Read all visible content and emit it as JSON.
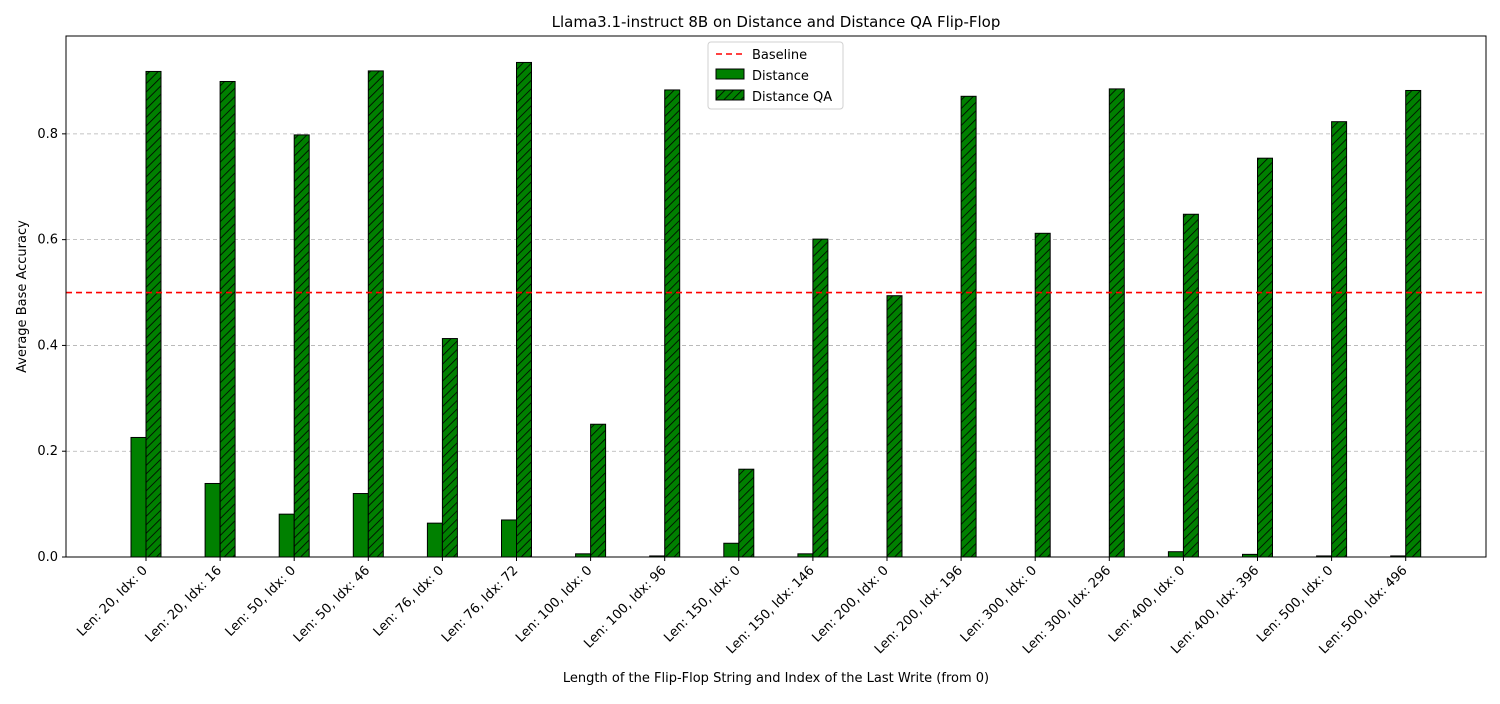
{
  "chart_data": {
    "type": "bar",
    "title": "Llama3.1-instruct 8B on Distance and Distance QA Flip-Flop",
    "xlabel": "Length of the Flip-Flop String and Index of the Last Write (from 0)",
    "ylabel": "Average Base Accuracy",
    "ylim": [
      0,
      0.985
    ],
    "yticks": [
      0.0,
      0.2,
      0.4,
      0.6,
      0.8
    ],
    "ytick_labels": [
      "0.0",
      "0.2",
      "0.4",
      "0.6",
      "0.8"
    ],
    "grid": "y-dashed",
    "legend_position": "top-center",
    "categories": [
      "Len: 20, Idx: 0",
      "Len: 20, Idx: 16",
      "Len: 50, Idx: 0",
      "Len: 50, Idx: 46",
      "Len: 76, Idx: 0",
      "Len: 76, Idx: 72",
      "Len: 100, Idx: 0",
      "Len: 100, Idx: 96",
      "Len: 150, Idx: 0",
      "Len: 150, Idx: 146",
      "Len: 200, Idx: 0",
      "Len: 200, Idx: 196",
      "Len: 300, Idx: 0",
      "Len: 300, Idx: 296",
      "Len: 400, Idx: 0",
      "Len: 400, Idx: 396",
      "Len: 500, Idx: 0",
      "Len: 500, Idx: 496"
    ],
    "series": [
      {
        "name": "Distance",
        "color": "#008000",
        "hatch": false,
        "values": [
          0.226,
          0.139,
          0.081,
          0.12,
          0.064,
          0.07,
          0.006,
          0.002,
          0.026,
          0.006,
          0.0,
          0.0,
          0.0,
          0.0,
          0.01,
          0.005,
          0.002,
          0.002
        ]
      },
      {
        "name": "Distance QA",
        "color": "#008000",
        "hatch": true,
        "values": [
          0.918,
          0.899,
          0.798,
          0.919,
          0.413,
          0.935,
          0.251,
          0.883,
          0.166,
          0.601,
          0.494,
          0.871,
          0.612,
          0.885,
          0.648,
          0.754,
          0.823,
          0.882
        ]
      }
    ],
    "baseline": {
      "name": "Baseline",
      "value": 0.5,
      "color": "#ff0000",
      "style": "dashed"
    }
  }
}
